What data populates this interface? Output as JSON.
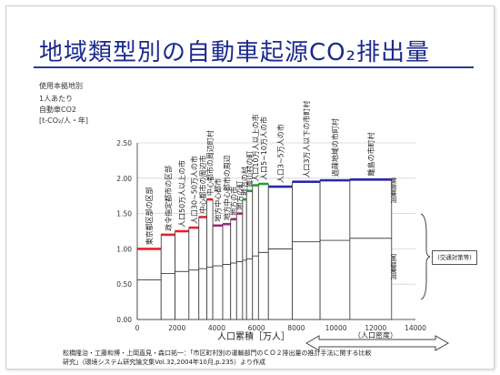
{
  "slide": {
    "title": "地域類型別の自動車起源CO₂排出量",
    "source_line1": "松橋隆治・工藤和博・上岡直見・森口祐一：「市区町村別の運輸部門のＣＯ２排出量の推計手法に関する比較",
    "source_line2": "研究」（環境システム研究論文集Vol.32,2004年10月,p.235）より作成",
    "pop_ratio_label": "（人口密度）",
    "colors": {
      "red": "#e8202a",
      "magenta": "#a0287a",
      "green": "#24a030",
      "blue": "#2a2aa8",
      "bar": "#333333",
      "grid": "#d4d4d4"
    }
  },
  "chart_data": {
    "type": "bar",
    "ylabel_lines": [
      "使用本拠地別",
      "1人あたり",
      "自動車CO2",
      "[t-CO₂/人・年]"
    ],
    "y_ticks": [
      "2.50",
      "2.00",
      "1.50",
      "1.00",
      "0.50",
      "0.00"
    ],
    "ylim": [
      0,
      2.5
    ],
    "x_ticks": [
      "0",
      "2000",
      "4000",
      "6000",
      "8000",
      "10000",
      "12000",
      "14000"
    ],
    "xlim": [
      0,
      14000
    ],
    "xlabel": "人口累積［万人］",
    "stack_labels": {
      "upper": "業務乗用",
      "lower": "家庭乗用"
    },
    "bracket_label": "(交通対策等)",
    "groups": [
      {
        "label": "東京都区部の区部",
        "x0": 0,
        "x1": 1200,
        "lower": 0.56,
        "total": 1.0,
        "color": "red"
      },
      {
        "label": "政令指定都市の区部",
        "x0": 1200,
        "x1": 1900,
        "lower": 0.65,
        "total": 1.2,
        "color": "red"
      },
      {
        "label": "人口50万人以上の市",
        "x0": 1900,
        "x1": 2600,
        "lower": 0.68,
        "total": 1.25,
        "color": "red"
      },
      {
        "label": "人口30~50万人の市",
        "x0": 2600,
        "x1": 3100,
        "lower": 0.7,
        "total": 1.3,
        "color": "red"
      },
      {
        "label": "中心都市の周辺市",
        "x0": 3100,
        "x1": 3500,
        "lower": 0.72,
        "total": 1.45,
        "color": "red"
      },
      {
        "label": "中心都市の周辺町村",
        "x0": 3500,
        "x1": 3800,
        "lower": 0.74,
        "total": 1.7,
        "color": "red"
      },
      {
        "label": "地方中心都市",
        "x0": 3800,
        "x1": 4300,
        "lower": 0.76,
        "total": 1.33,
        "color": "magenta"
      },
      {
        "label": "地方中心都市の周辺",
        "x0": 4300,
        "x1": 4700,
        "lower": 0.78,
        "total": 1.35,
        "color": "magenta"
      },
      {
        "label": "地方の市",
        "x0": 4700,
        "x1": 5000,
        "lower": 0.8,
        "total": 1.42,
        "color": "magenta"
      },
      {
        "label": "地方の町",
        "x0": 5000,
        "x1": 5300,
        "lower": 0.82,
        "total": 1.5,
        "color": "magenta"
      },
      {
        "label": "地方の村",
        "x0": 5300,
        "x1": 5500,
        "lower": 0.84,
        "total": 1.7,
        "color": "green"
      },
      {
        "label": "農山村の町",
        "x0": 5500,
        "x1": 5800,
        "lower": 0.86,
        "total": 1.82,
        "color": "green"
      },
      {
        "label": "人口10万人以上の市",
        "x0": 5800,
        "x1": 6100,
        "lower": 0.9,
        "total": 1.9,
        "color": "green"
      },
      {
        "label": "人口5~10万人の市",
        "x0": 6100,
        "x1": 6600,
        "lower": 0.95,
        "total": 1.92,
        "color": "green"
      },
      {
        "label": "人口3~5万人の市",
        "x0": 6600,
        "x1": 7800,
        "lower": 1.0,
        "total": 1.88,
        "color": "blue"
      },
      {
        "label": "人口3万人以下の市町村",
        "x0": 7800,
        "x1": 9200,
        "lower": 1.1,
        "total": 1.95,
        "color": "blue"
      },
      {
        "label": "過疎地域の市町村",
        "x0": 9200,
        "x1": 10700,
        "lower": 1.12,
        "total": 1.97,
        "color": "blue"
      },
      {
        "label": "離島の市町村",
        "x0": 10700,
        "x1": 12800,
        "lower": 1.15,
        "total": 1.98,
        "color": "blue"
      }
    ]
  }
}
